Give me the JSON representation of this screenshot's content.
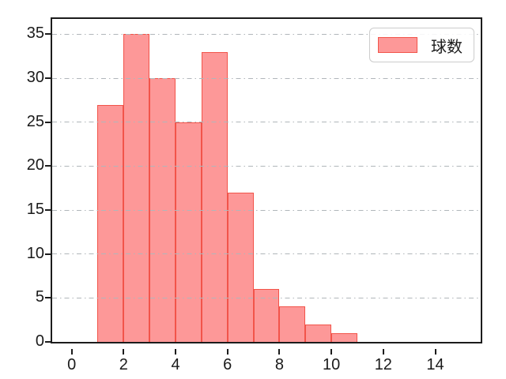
{
  "chart_data": {
    "type": "bar",
    "subtype": "histogram",
    "title": "",
    "xlabel": "",
    "ylabel": "",
    "legend_label": "球数",
    "legend_position": "upper right",
    "bins": {
      "start": 1,
      "width": 1,
      "end": 11
    },
    "bin_edges": [
      1,
      2,
      3,
      4,
      5,
      6,
      7,
      8,
      9,
      10,
      11
    ],
    "values": [
      27,
      35,
      30,
      25,
      33,
      17,
      6,
      4,
      2,
      1
    ],
    "x_tick_values": [
      0,
      2,
      4,
      6,
      8,
      10,
      12,
      14
    ],
    "x_tick_labels": [
      "0",
      "2",
      "4",
      "6",
      "8",
      "10",
      "12",
      "14"
    ],
    "y_tick_values": [
      0,
      5,
      10,
      15,
      20,
      25,
      30,
      35
    ],
    "y_tick_labels": [
      "0",
      "5",
      "10",
      "15",
      "20",
      "25",
      "30",
      "35"
    ],
    "xlim": [
      -0.75,
      15.75
    ],
    "ylim": [
      0,
      36.75
    ],
    "grid": {
      "visible": true,
      "axis": "y",
      "linestyle": "dashdot"
    },
    "colors": {
      "bar_fill": "#FD9898",
      "bar_edge": "#F2544A",
      "grid": "#B0B6BA",
      "axis": "#1C1C1C",
      "text": "#1A1A1A",
      "legend_border": "#CCCCCC"
    }
  }
}
